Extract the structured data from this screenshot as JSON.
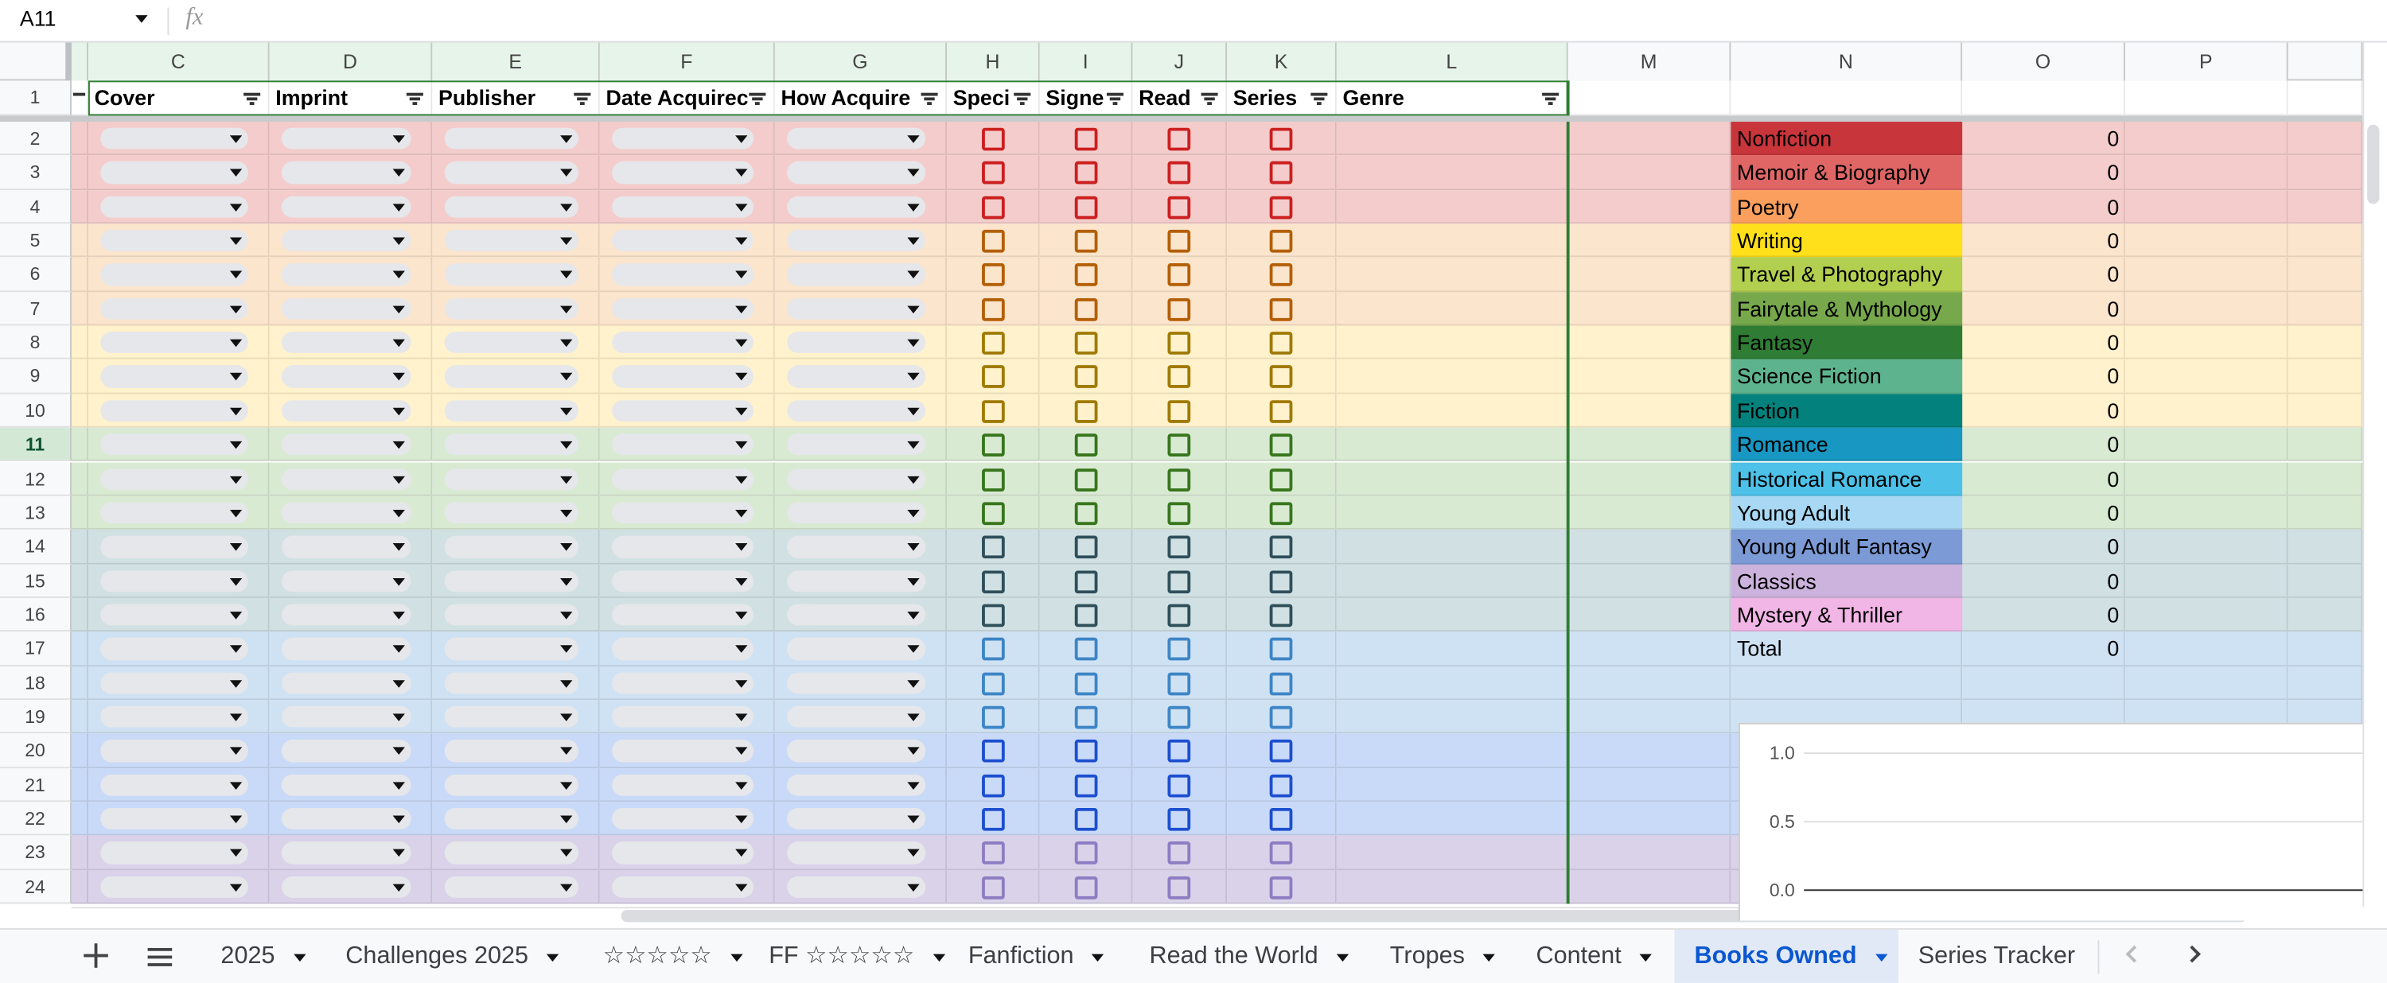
{
  "header": {
    "name_box": "A11",
    "formula_icon": "fx"
  },
  "column_headers": [
    "C",
    "D",
    "E",
    "F",
    "G",
    "H",
    "I",
    "J",
    "K",
    "L",
    "M",
    "N",
    "O",
    "P"
  ],
  "row_numbers": [
    1,
    2,
    3,
    4,
    5,
    6,
    7,
    8,
    9,
    10,
    11,
    12,
    13,
    14,
    15,
    16,
    17,
    18,
    19,
    20,
    21,
    22,
    23,
    24
  ],
  "header_row": [
    "Cover",
    "Imprint",
    "Publisher",
    "Date Acquirec",
    "How Acquire",
    "Speci",
    "Signe",
    "Read",
    "Series",
    "Genre"
  ],
  "genres": [
    {
      "name": "Nonfiction",
      "color": "#c8353a",
      "count": 0
    },
    {
      "name": "Memoir & Biography",
      "color": "#e06666",
      "count": 0
    },
    {
      "name": "Poetry",
      "color": "#fb9f5e",
      "count": 0
    },
    {
      "name": "Writing",
      "color": "#ffe01a",
      "count": 0
    },
    {
      "name": "Travel & Photography",
      "color": "#b3cf4f",
      "count": 0
    },
    {
      "name": "Fairytale & Mythology",
      "color": "#77a84c",
      "count": 0
    },
    {
      "name": "Fantasy",
      "color": "#2f7d35",
      "count": 0
    },
    {
      "name": "Science Fiction",
      "color": "#5db38e",
      "count": 0
    },
    {
      "name": "Fiction",
      "color": "#03817d",
      "count": 0
    },
    {
      "name": "Romance",
      "color": "#1797c2",
      "count": 0
    },
    {
      "name": "Historical Romance",
      "color": "#4dc1e8",
      "count": 0
    },
    {
      "name": "Young Adult",
      "color": "#a8d8f4",
      "count": 0
    },
    {
      "name": "Young Adult Fantasy",
      "color": "#7b9ad6",
      "count": 0
    },
    {
      "name": "Classics",
      "color": "#ccb3dd",
      "count": 0
    },
    {
      "name": "Mystery & Thriller",
      "color": "#f1b5e6",
      "count": 0
    }
  ],
  "total": {
    "label": "Total",
    "count": 0
  },
  "chart_data": {
    "type": "column",
    "ylim": [
      0,
      1
    ],
    "yticks": [
      {
        "value": 0,
        "label": "0.0"
      },
      {
        "value": 0.5,
        "label": "0.5"
      },
      {
        "value": 1,
        "label": "1.0"
      }
    ]
  },
  "tabs": [
    "2025",
    "Challenges 2025",
    "☆☆☆☆☆",
    "FF ☆☆☆☆☆",
    "Fanfiction",
    "Read the World",
    "Tropes",
    "Content",
    "Books Owned",
    "Series Tracker"
  ],
  "active_tab": "Books Owned"
}
